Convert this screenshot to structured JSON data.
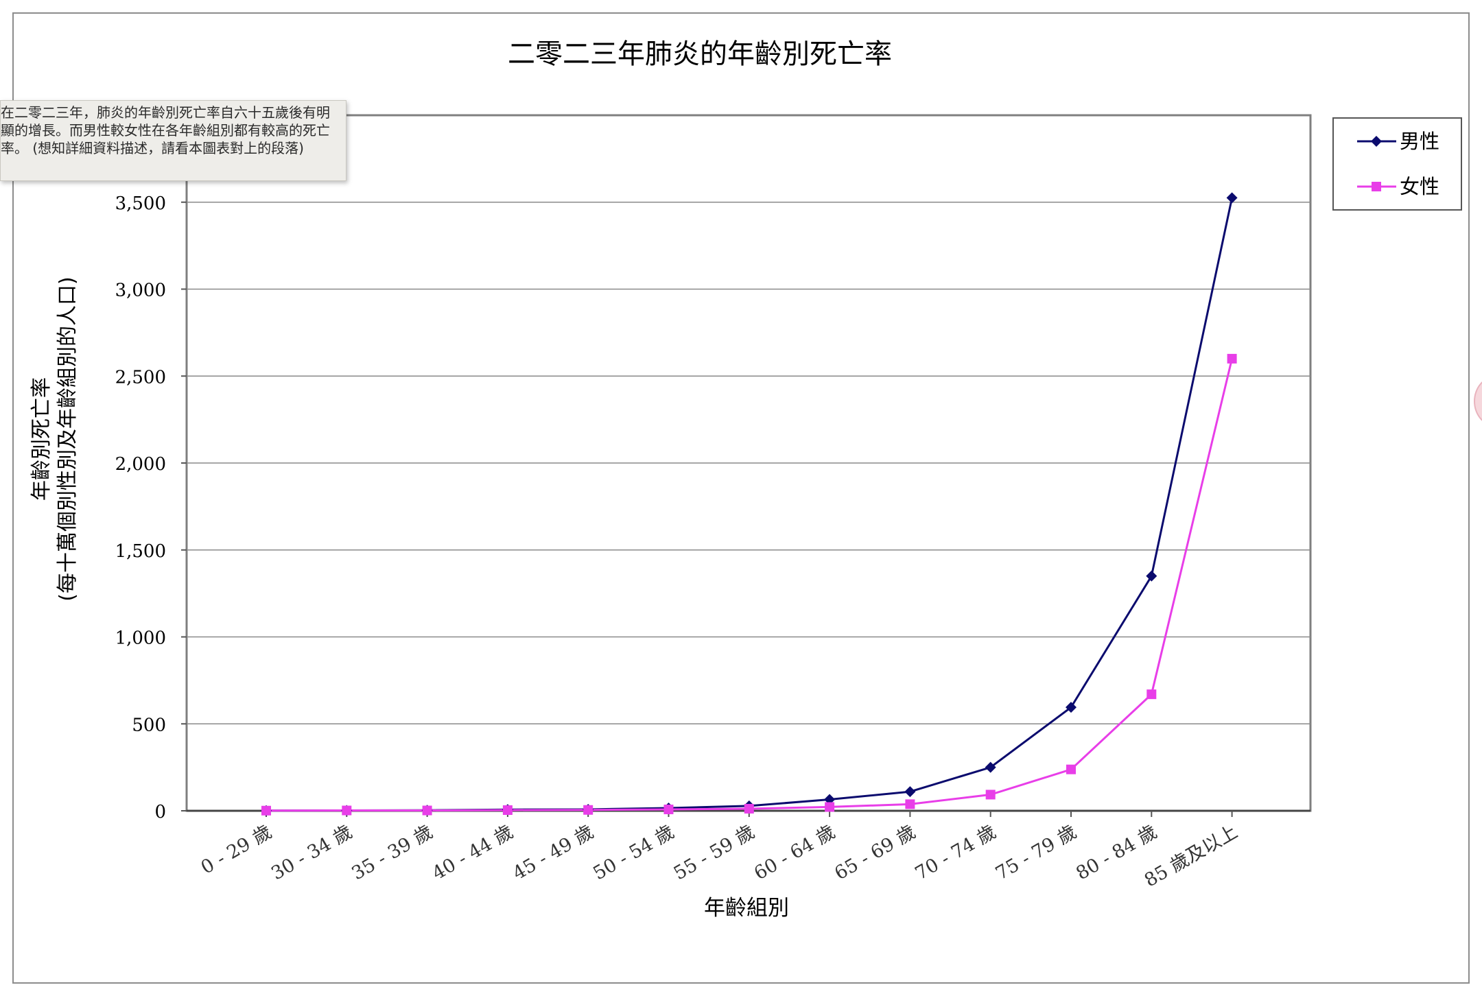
{
  "tooltip": {
    "text": "在二零二三年，肺炎的年齡別死亡率自六十五歲後有明顯的增長。而男性較女性在各年齡組別都有較高的死亡率。 (想知詳細資料描述，請看本圖表對上的段落)"
  },
  "chart_data": {
    "type": "line",
    "title": "二零二三年肺炎的年齡別死亡率",
    "xlabel": "年齡組別",
    "ylabel_lines": [
      "年齡別死亡率",
      "(每十萬個別性別及年齡組別的人口)"
    ],
    "categories": [
      "0 - 29 歲",
      "30 - 34 歲",
      "35 - 39 歲",
      "40 - 44 歲",
      "45 - 49 歲",
      "50 - 54 歲",
      "55 - 59 歲",
      "60 - 64 歲",
      "65 - 69 歲",
      "70 - 74 歲",
      "75 - 79 歲",
      "80 - 84 歲",
      "85 歲及以上"
    ],
    "ylim": [
      0,
      4000
    ],
    "yticks": [
      0,
      500,
      1000,
      1500,
      2000,
      2500,
      3000,
      3500
    ],
    "ytick_labels": [
      "0",
      "500",
      "1,000",
      "1,500",
      "2,000",
      "2,500",
      "3,000",
      "3,500"
    ],
    "grid": true,
    "legend_position": "right-top",
    "series": [
      {
        "name": "男性",
        "color": "#0b0b6e",
        "marker": "diamond",
        "values": [
          1,
          2,
          3,
          7,
          8,
          16,
          28,
          65,
          110,
          250,
          595,
          1350,
          3525
        ]
      },
      {
        "name": "女性",
        "color": "#e83ee8",
        "marker": "square",
        "values": [
          1,
          2,
          2,
          4,
          5,
          8,
          12,
          22,
          38,
          93,
          238,
          670,
          2600
        ]
      }
    ]
  }
}
